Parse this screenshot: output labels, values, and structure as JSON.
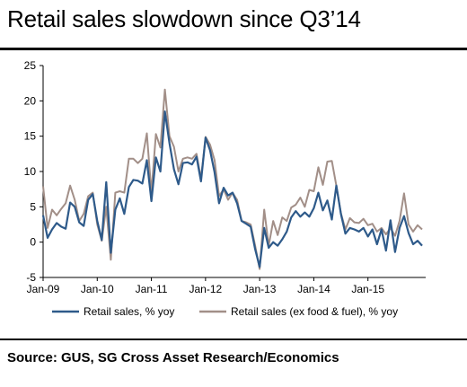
{
  "title": "Retail sales slowdown since Q3’14",
  "source": "Source: GUS, SG Cross Asset Research/Economics",
  "chart_data": {
    "type": "line",
    "yticks": [
      "25",
      "20",
      "15",
      "10",
      "5",
      "0",
      "-5"
    ],
    "ylim": [
      -5,
      25
    ],
    "xtick_labels": [
      "Jan-09",
      "Jan-10",
      "Jan-11",
      "Jan-12",
      "Jan-13",
      "Jan-14",
      "Jan-15"
    ],
    "x_start": "Jan-09",
    "grid": false,
    "legend_placement": "bottom",
    "series": [
      {
        "name": "Retail sales, % yoy",
        "color": "#2e5a8a",
        "values": [
          3.8,
          0.6,
          1.8,
          2.7,
          2.2,
          1.9,
          5.6,
          5.0,
          2.8,
          2.3,
          6.0,
          6.8,
          3.0,
          0.3,
          8.5,
          -1.5,
          4.6,
          6.2,
          4.0,
          7.8,
          8.8,
          8.7,
          8.3,
          11.6,
          5.8,
          12.0,
          10.0,
          18.5,
          14.0,
          10.3,
          8.2,
          11.2,
          11.3,
          11.0,
          12.1,
          8.6,
          14.8,
          13.0,
          9.9,
          5.5,
          7.7,
          6.6,
          7.0,
          5.5,
          3.0,
          2.6,
          2.2,
          -1.0,
          -3.5,
          2.0,
          -0.8,
          0.0,
          -0.5,
          0.4,
          1.5,
          3.5,
          4.4,
          3.6,
          4.2,
          3.6,
          4.8,
          7.0,
          4.5,
          5.9,
          3.2,
          8.0,
          4.0,
          1.2,
          2.0,
          1.8,
          1.5,
          2.0,
          0.8,
          1.8,
          -0.3,
          1.8,
          -1.2,
          3.1,
          -1.4,
          2.0,
          3.7,
          1.3,
          -0.3,
          0.2,
          -0.5
        ]
      },
      {
        "name": "Retail sales (ex food & fuel), % yoy",
        "color": "#a28f88",
        "values": [
          7.9,
          2.0,
          4.6,
          3.8,
          4.7,
          5.5,
          8.0,
          6.0,
          3.0,
          4.0,
          6.5,
          7.0,
          2.5,
          0.2,
          5.0,
          -2.5,
          7.0,
          7.2,
          7.0,
          11.8,
          11.8,
          11.2,
          11.8,
          15.4,
          7.0,
          15.3,
          13.4,
          21.6,
          15.0,
          13.5,
          10.0,
          11.8,
          12.0,
          11.8,
          12.5,
          9.0,
          14.9,
          13.8,
          11.6,
          6.5,
          7.5,
          6.0,
          7.0,
          6.0,
          3.0,
          2.8,
          2.5,
          -0.5,
          -3.8,
          4.6,
          -0.5,
          3.0,
          1.0,
          3.5,
          3.0,
          4.9,
          5.3,
          6.3,
          5.0,
          7.4,
          7.2,
          10.6,
          8.1,
          11.4,
          11.5,
          8.0,
          4.1,
          1.8,
          3.4,
          2.8,
          2.7,
          3.3,
          2.4,
          2.6,
          1.5,
          2.0,
          1.1,
          2.0,
          0.9,
          3.0,
          6.9,
          2.5,
          1.5,
          2.4,
          1.8
        ]
      }
    ]
  }
}
